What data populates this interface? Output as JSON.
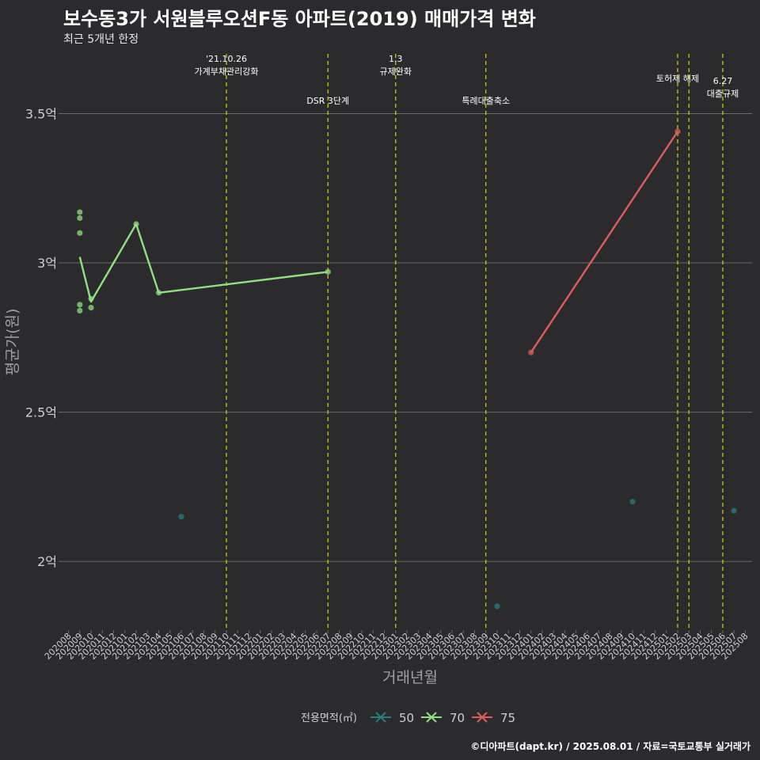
{
  "title": "보수동3가 서원블루오션F동 아파트(2019) 매매가격 변화",
  "subtitle": "최근 5개년 한정",
  "caption": "©디아파트(dapt.kr) / 2025.08.01 / 자료=국토교통부 실거래가",
  "chart_data": {
    "type": "line",
    "xlabel": "거래년월",
    "ylabel": "평균가(원)",
    "ylim": [
      1.77,
      3.7
    ],
    "y_ticks": [
      {
        "value": 2.0,
        "label": "2억"
      },
      {
        "value": 2.5,
        "label": "2.5억"
      },
      {
        "value": 3.0,
        "label": "3억"
      },
      {
        "value": 3.5,
        "label": "3.5억"
      }
    ],
    "x_categories": [
      "202008",
      "202009",
      "202010",
      "202011",
      "202012",
      "202101",
      "202102",
      "202103",
      "202104",
      "202105",
      "202106",
      "202107",
      "202108",
      "202109",
      "202110",
      "202111",
      "202112",
      "202201",
      "202202",
      "202203",
      "202204",
      "202205",
      "202206",
      "202207",
      "202208",
      "202209",
      "202210",
      "202211",
      "202212",
      "202301",
      "202302",
      "202303",
      "202304",
      "202305",
      "202306",
      "202307",
      "202308",
      "202309",
      "202310",
      "202311",
      "202312",
      "202401",
      "202402",
      "202403",
      "202404",
      "202405",
      "202406",
      "202407",
      "202408",
      "202409",
      "202410",
      "202411",
      "202412",
      "202501",
      "202502",
      "202503",
      "202504",
      "202505",
      "202506",
      "202507",
      "202508"
    ],
    "legend": {
      "title": "전용면적(㎡)",
      "position": "bottom",
      "items": [
        {
          "label": "50",
          "color": "#2a7d7d"
        },
        {
          "label": "70",
          "color": "#8fe07f"
        },
        {
          "label": "75",
          "color": "#de5c5c"
        }
      ]
    },
    "series": [
      {
        "name": "50",
        "color": "#2a7d7d",
        "line": [],
        "points": [
          {
            "x": "202106",
            "y": 2.15
          },
          {
            "x": "202310",
            "y": 1.85
          },
          {
            "x": "202410",
            "y": 2.2
          },
          {
            "x": "202507",
            "y": 2.17
          }
        ]
      },
      {
        "name": "70",
        "color": "#8fe07f",
        "line": [
          {
            "x": "202009",
            "y": 3.02
          },
          {
            "x": "202010",
            "y": 2.87
          },
          {
            "x": "202102",
            "y": 3.13
          },
          {
            "x": "202104",
            "y": 2.9
          },
          {
            "x": "202207",
            "y": 2.97
          }
        ],
        "points": [
          {
            "x": "202009",
            "y": 3.17
          },
          {
            "x": "202009",
            "y": 3.15
          },
          {
            "x": "202009",
            "y": 3.1
          },
          {
            "x": "202009",
            "y": 2.86
          },
          {
            "x": "202009",
            "y": 2.84
          },
          {
            "x": "202010",
            "y": 2.88
          },
          {
            "x": "202010",
            "y": 2.85
          },
          {
            "x": "202102",
            "y": 3.13
          },
          {
            "x": "202104",
            "y": 2.9
          },
          {
            "x": "202207",
            "y": 2.97
          }
        ]
      },
      {
        "name": "75",
        "color": "#de5c5c",
        "line": [
          {
            "x": "202401",
            "y": 2.7
          },
          {
            "x": "202502",
            "y": 3.44
          }
        ],
        "points": [
          {
            "x": "202401",
            "y": 2.7
          },
          {
            "x": "202502",
            "y": 3.44
          }
        ]
      }
    ],
    "vlines": [
      {
        "x": "202110",
        "label": [
          "'21.10.26",
          "가계부채관리강화"
        ],
        "row": "top"
      },
      {
        "x": "202207",
        "label": [
          "DSR 3단계"
        ],
        "row": "low"
      },
      {
        "x": "202301",
        "label": [
          "1.3",
          "규제완화"
        ],
        "row": "top"
      },
      {
        "x": "202309",
        "label": [
          "특례대출축소"
        ],
        "row": "low"
      },
      {
        "x": "202502",
        "label": [
          "토허제 해제"
        ],
        "row": "mid"
      },
      {
        "x": "202503",
        "label": [],
        "row": "mid"
      },
      {
        "x": "202506",
        "label": [
          "6.27",
          "대출규제"
        ],
        "row": "lower"
      }
    ],
    "colors": {
      "background": "#2b2a2c",
      "grid": "#6b6b6b",
      "vline": "#d8d800",
      "axis_text": "#cfcfcf",
      "title_text": "#a0a0a0"
    }
  }
}
